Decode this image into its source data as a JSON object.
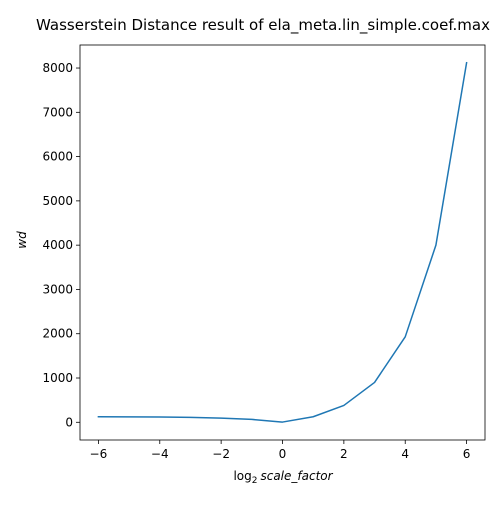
{
  "chart_data": {
    "type": "line",
    "title": "Wasserstein Distance result of ela_meta.lin_simple.coef.max",
    "xlabel_prefix": "log",
    "xlabel_subscript": "2",
    "xlabel_var": "scale_factor",
    "ylabel": "wd",
    "xlim": [
      -6.6,
      6.6
    ],
    "ylim": [
      -400,
      8520
    ],
    "xticks": [
      -6,
      -4,
      -2,
      0,
      2,
      4,
      6
    ],
    "xtick_labels": [
      "−6",
      "−4",
      "−2",
      "0",
      "2",
      "4",
      "6"
    ],
    "yticks": [
      0,
      1000,
      2000,
      3000,
      4000,
      5000,
      6000,
      7000,
      8000
    ],
    "ytick_labels": [
      "0",
      "1000",
      "2000",
      "3000",
      "4000",
      "5000",
      "6000",
      "7000",
      "8000"
    ],
    "grid": false,
    "color": "#1f77b4",
    "series": [
      {
        "x": [
          -6,
          -5,
          -4,
          -3,
          -2,
          -1,
          0,
          1,
          2,
          3,
          4,
          5,
          6
        ],
        "y": [
          125,
          122,
          118,
          110,
          95,
          65,
          5,
          125,
          380,
          900,
          1930,
          4000,
          8120
        ]
      }
    ]
  }
}
